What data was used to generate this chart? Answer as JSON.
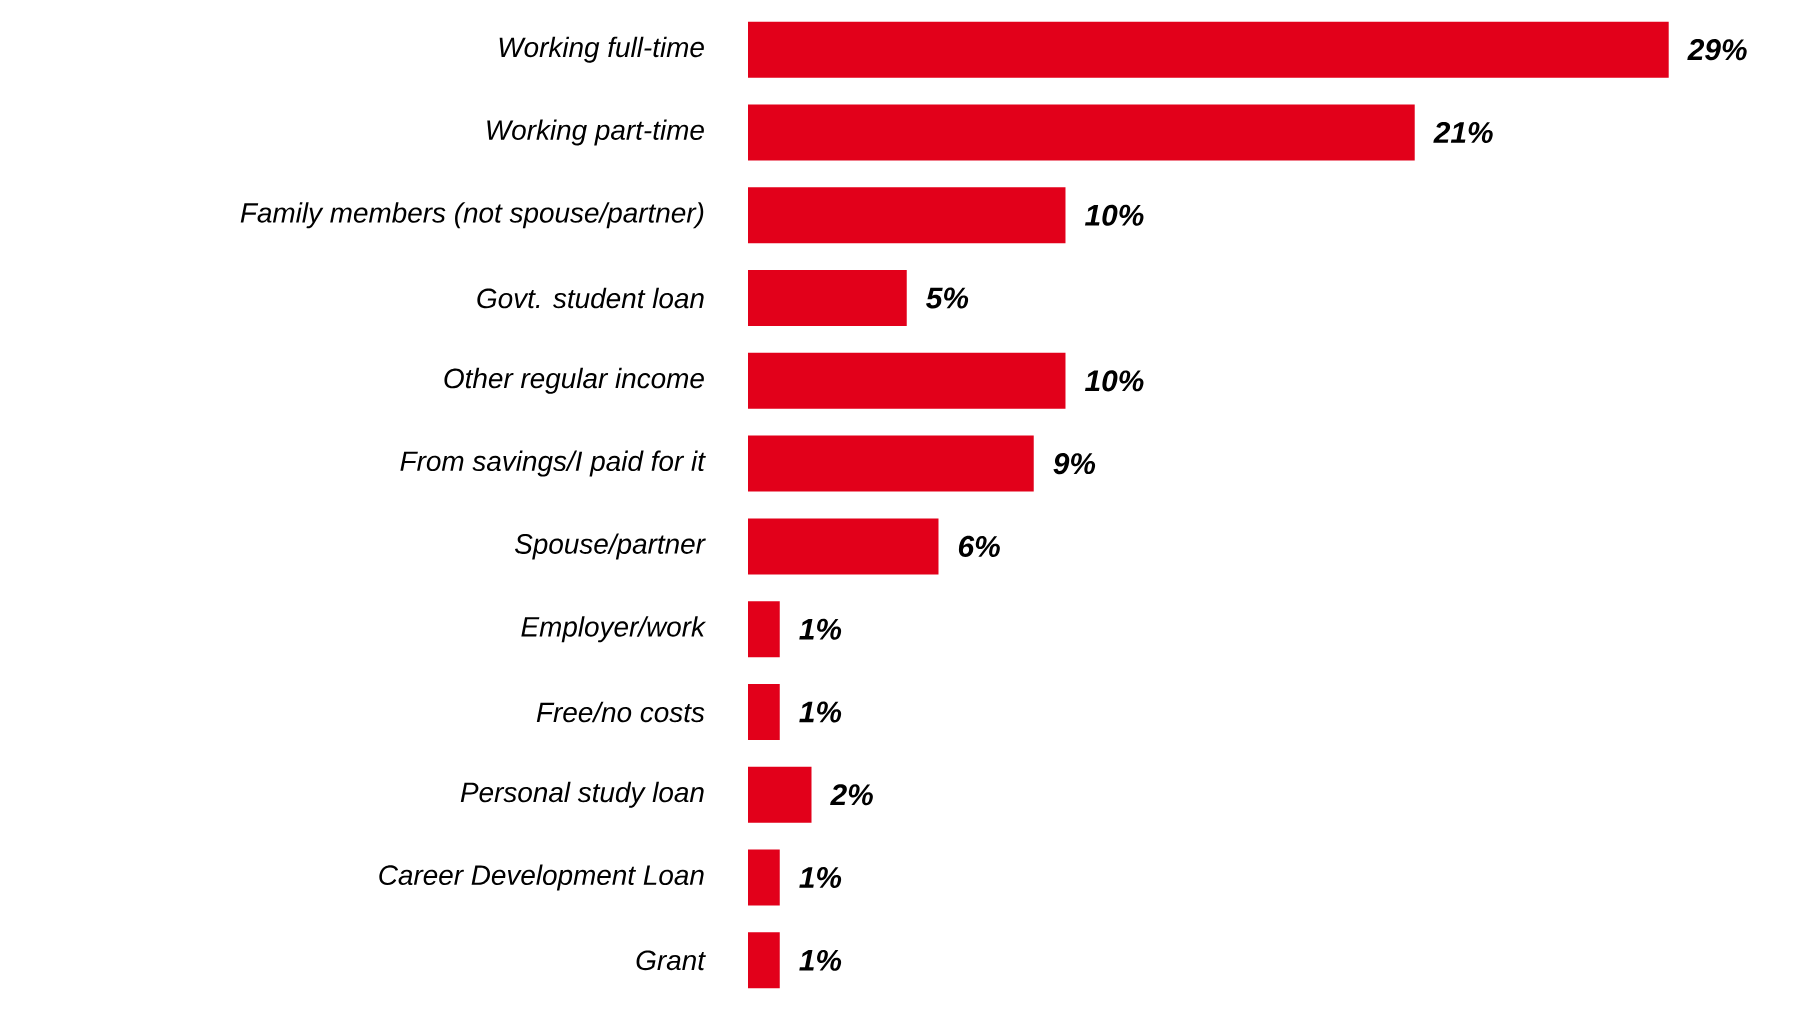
{
  "chart_data": {
    "type": "bar",
    "orientation": "horizontal",
    "categories": [
      "Working full-time",
      "Working part-time",
      "Family members (not spouse/partner)",
      "Govt. student loan",
      "Other regular income",
      "From savings/I paid for it",
      "Spouse/partner",
      "Employer/work",
      "Free/no costs",
      "Personal study loan",
      "Career Development Loan",
      "Grant"
    ],
    "values": [
      29,
      21,
      10,
      5,
      10,
      9,
      6,
      1,
      1,
      2,
      1,
      1
    ],
    "value_labels": [
      "29%",
      "21%",
      "10%",
      "5%",
      "10%",
      "9%",
      "6%",
      "1%",
      "1%",
      "2%",
      "1%",
      "1%"
    ],
    "color": "#e2001a"
  }
}
